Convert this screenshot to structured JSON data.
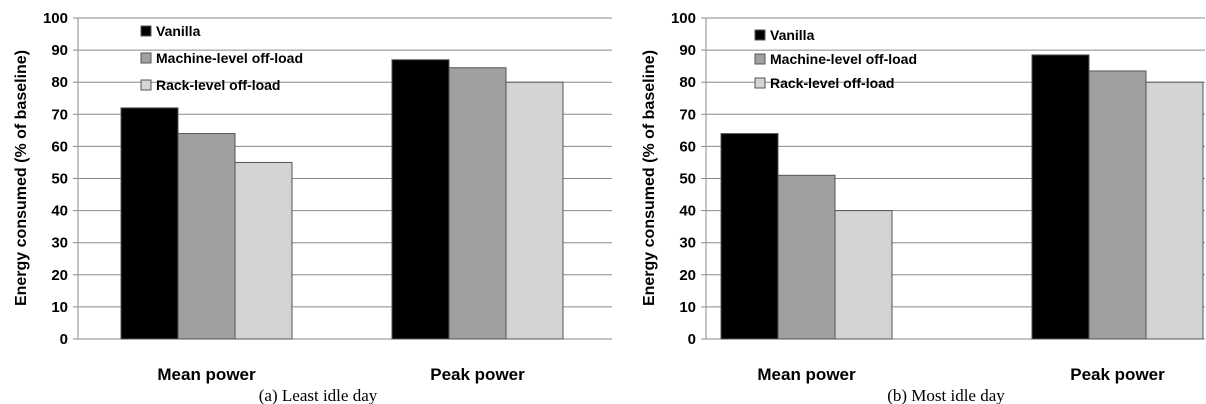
{
  "chart_data": [
    {
      "type": "bar",
      "categories": [
        "Mean power",
        "Peak power"
      ],
      "series": [
        {
          "name": "Vanilla",
          "values": [
            72,
            87
          ],
          "color": "#000000"
        },
        {
          "name": "Machine-level off-load",
          "values": [
            64,
            84.5
          ],
          "color": "#a0a0a0"
        },
        {
          "name": "Rack-level off-load",
          "values": [
            55,
            80
          ],
          "color": "#d4d4d4"
        }
      ],
      "ylabel": "Energy consumed (% of baseline)",
      "ylim": [
        0,
        100
      ],
      "yticks": [
        "0",
        "10",
        "20",
        "30",
        "40",
        "50",
        "60",
        "70",
        "80",
        "90",
        "100"
      ],
      "grid": true,
      "legend": "top-left",
      "caption": "(a)  Least idle day"
    },
    {
      "type": "bar",
      "categories": [
        "Mean power",
        "Peak power"
      ],
      "series": [
        {
          "name": "Vanilla",
          "values": [
            64,
            88.5
          ],
          "color": "#000000"
        },
        {
          "name": "Machine-level off-load",
          "values": [
            51,
            83.5
          ],
          "color": "#a0a0a0"
        },
        {
          "name": "Rack-level off-load",
          "values": [
            40,
            80
          ],
          "color": "#d4d4d4"
        }
      ],
      "ylabel": "Energy consumed (% of baseline)",
      "ylim": [
        0,
        100
      ],
      "yticks": [
        "0",
        "10",
        "20",
        "30",
        "40",
        "50",
        "60",
        "70",
        "80",
        "90",
        "100"
      ],
      "grid": true,
      "legend": "top-left",
      "caption": "(b)  Most idle day"
    }
  ]
}
